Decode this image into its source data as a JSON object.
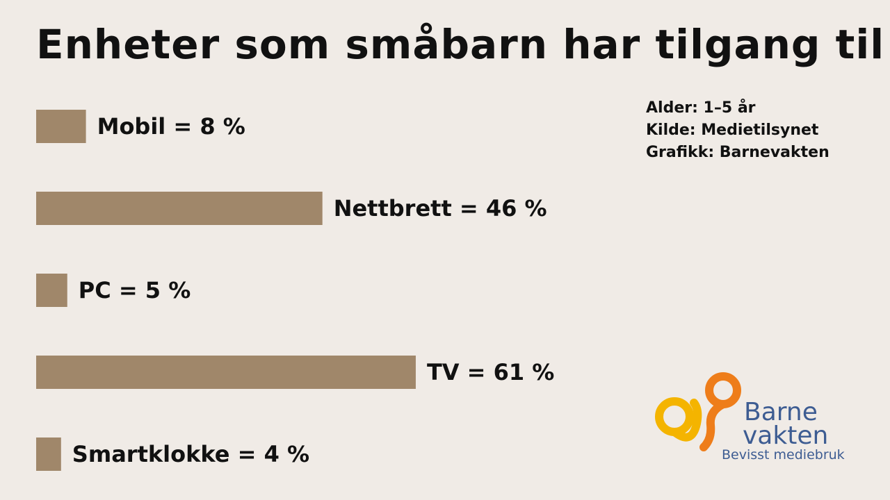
{
  "chart_data": {
    "type": "bar",
    "orientation": "horizontal",
    "title": "Enheter som småbarn har tilgang til",
    "categories": [
      "Mobil",
      "Nettbrett",
      "PC",
      "TV",
      "Smartklokke"
    ],
    "values": [
      8,
      46,
      5,
      61,
      4
    ],
    "labels": [
      "Mobil = 8 %",
      "Nettbrett = 46 %",
      "PC = 5 %",
      "TV = 61 %",
      "Smartklokke = 4 %"
    ],
    "unit": "%",
    "xlim": [
      0,
      100
    ],
    "bar_color": "#a0876a",
    "grid": false,
    "legend": "none"
  },
  "meta": {
    "age": "Alder: 1–5 år",
    "source": "Kilde: Medietilsynet",
    "graphics": "Grafikk: Barnevakten"
  },
  "logo": {
    "name_top": "Barne",
    "name_bottom": "vakten",
    "tagline": "Bevisst mediebruk",
    "color_yellow": "#f4b400",
    "color_orange": "#ee7d1a",
    "color_text": "#3d5c92"
  },
  "colors": {
    "background": "#f0ebe6",
    "text": "#111111"
  }
}
